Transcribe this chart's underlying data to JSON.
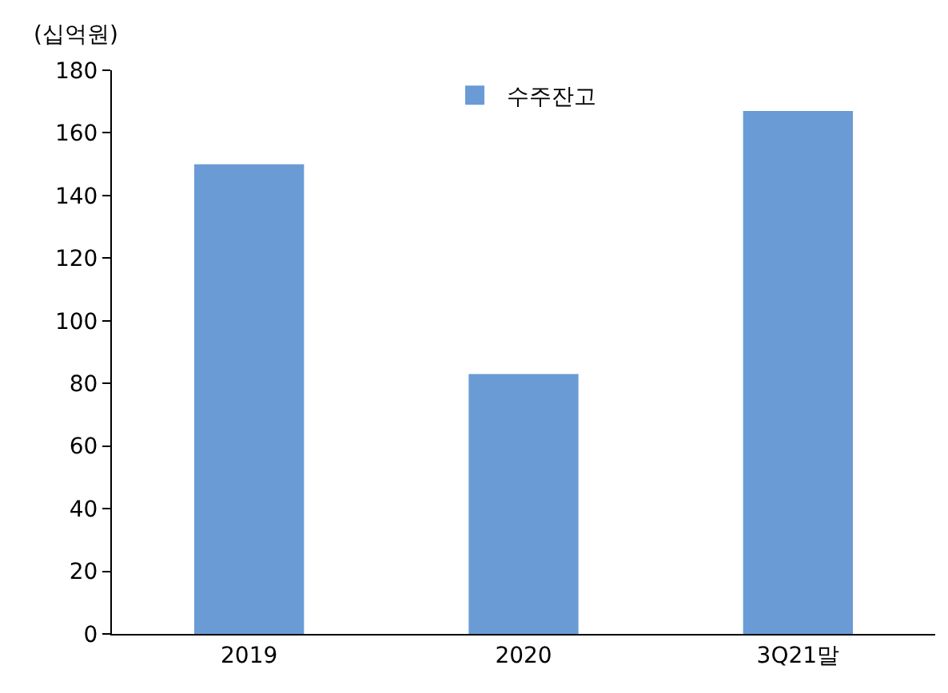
{
  "chart_data": {
    "type": "bar",
    "ylabel": "(십억원)",
    "categories": [
      "2019",
      "2020",
      "3Q21말"
    ],
    "series": [
      {
        "name": "수주잔고",
        "color": "#6a9bd5",
        "values": [
          150,
          83,
          167
        ]
      }
    ],
    "ylim": [
      0,
      180
    ],
    "yticks": [
      0,
      20,
      40,
      60,
      80,
      100,
      120,
      140,
      160,
      180
    ],
    "grid": false,
    "legend": "top"
  }
}
